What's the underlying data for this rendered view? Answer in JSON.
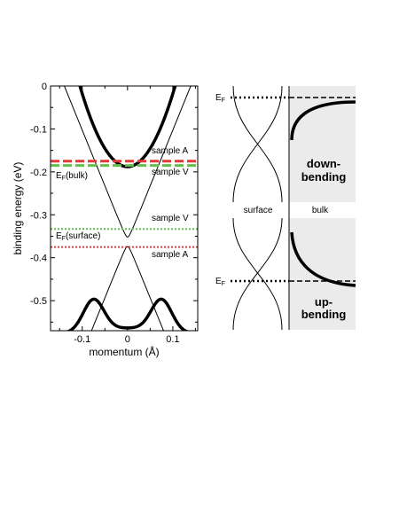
{
  "left_panel": {
    "xlabel": "momentum (Å)",
    "ylabel": "binding energy (eV)",
    "x_ticks": [
      "-0.1",
      "0",
      "0.1"
    ],
    "x_tick_values": [
      -0.1,
      0,
      0.1
    ],
    "y_ticks": [
      "0",
      "-0.1",
      "-0.2",
      "-0.3",
      "-0.4",
      "-0.5"
    ],
    "y_tick_values": [
      0,
      -0.1,
      -0.2,
      -0.3,
      -0.4,
      -0.5
    ],
    "xlim": [
      -0.17,
      0.155
    ],
    "ylim": [
      -0.57,
      0
    ],
    "labels": {
      "sample_a_top": "sample A",
      "sample_v_top": "sample V",
      "ef_bulk_main": "E",
      "ef_bulk_sub": "F",
      "ef_bulk_suffix": "(bulk)",
      "sample_v_mid": "sample V",
      "ef_surface_main": "E",
      "ef_surface_sub": "F",
      "ef_surface_suffix": "(surface)",
      "sample_a_bottom": "sample A"
    },
    "levels": [
      {
        "id": "red-dashed",
        "energy": -0.175,
        "color": "#e8363a",
        "style": "dashed"
      },
      {
        "id": "green-dashed",
        "energy": -0.185,
        "color": "#5cc04a",
        "style": "dashed"
      },
      {
        "id": "green-dotted",
        "energy": -0.333,
        "color": "#5cc04a",
        "style": "dotted"
      },
      {
        "id": "red-dotted",
        "energy": -0.375,
        "color": "#e8363a",
        "style": "dotted"
      }
    ]
  },
  "right_panel": {
    "ef_top_main": "E",
    "ef_top_sub": "F",
    "ef_bottom_main": "E",
    "ef_bottom_sub": "F",
    "surface_label": "surface",
    "bulk_label": "bulk",
    "down_bending_line1": "down-",
    "down_bending_line2": "bending",
    "up_bending_line1": "up-",
    "up_bending_line2": "bending",
    "shade_color": "#ebebeb"
  }
}
